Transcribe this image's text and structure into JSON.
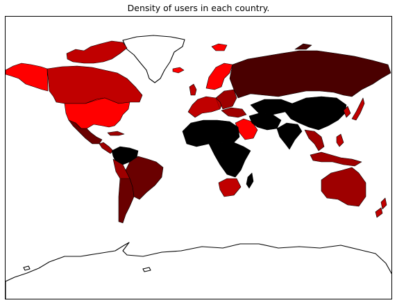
{
  "title": "Density of users in each country.",
  "colors": {
    "very_high": "#ff0000",
    "high": "#c00000",
    "mid": "#9e0000",
    "low": "#6a0000",
    "very_low": "#4a0000",
    "none": "#000000",
    "no_data": "#ffffff"
  }
}
